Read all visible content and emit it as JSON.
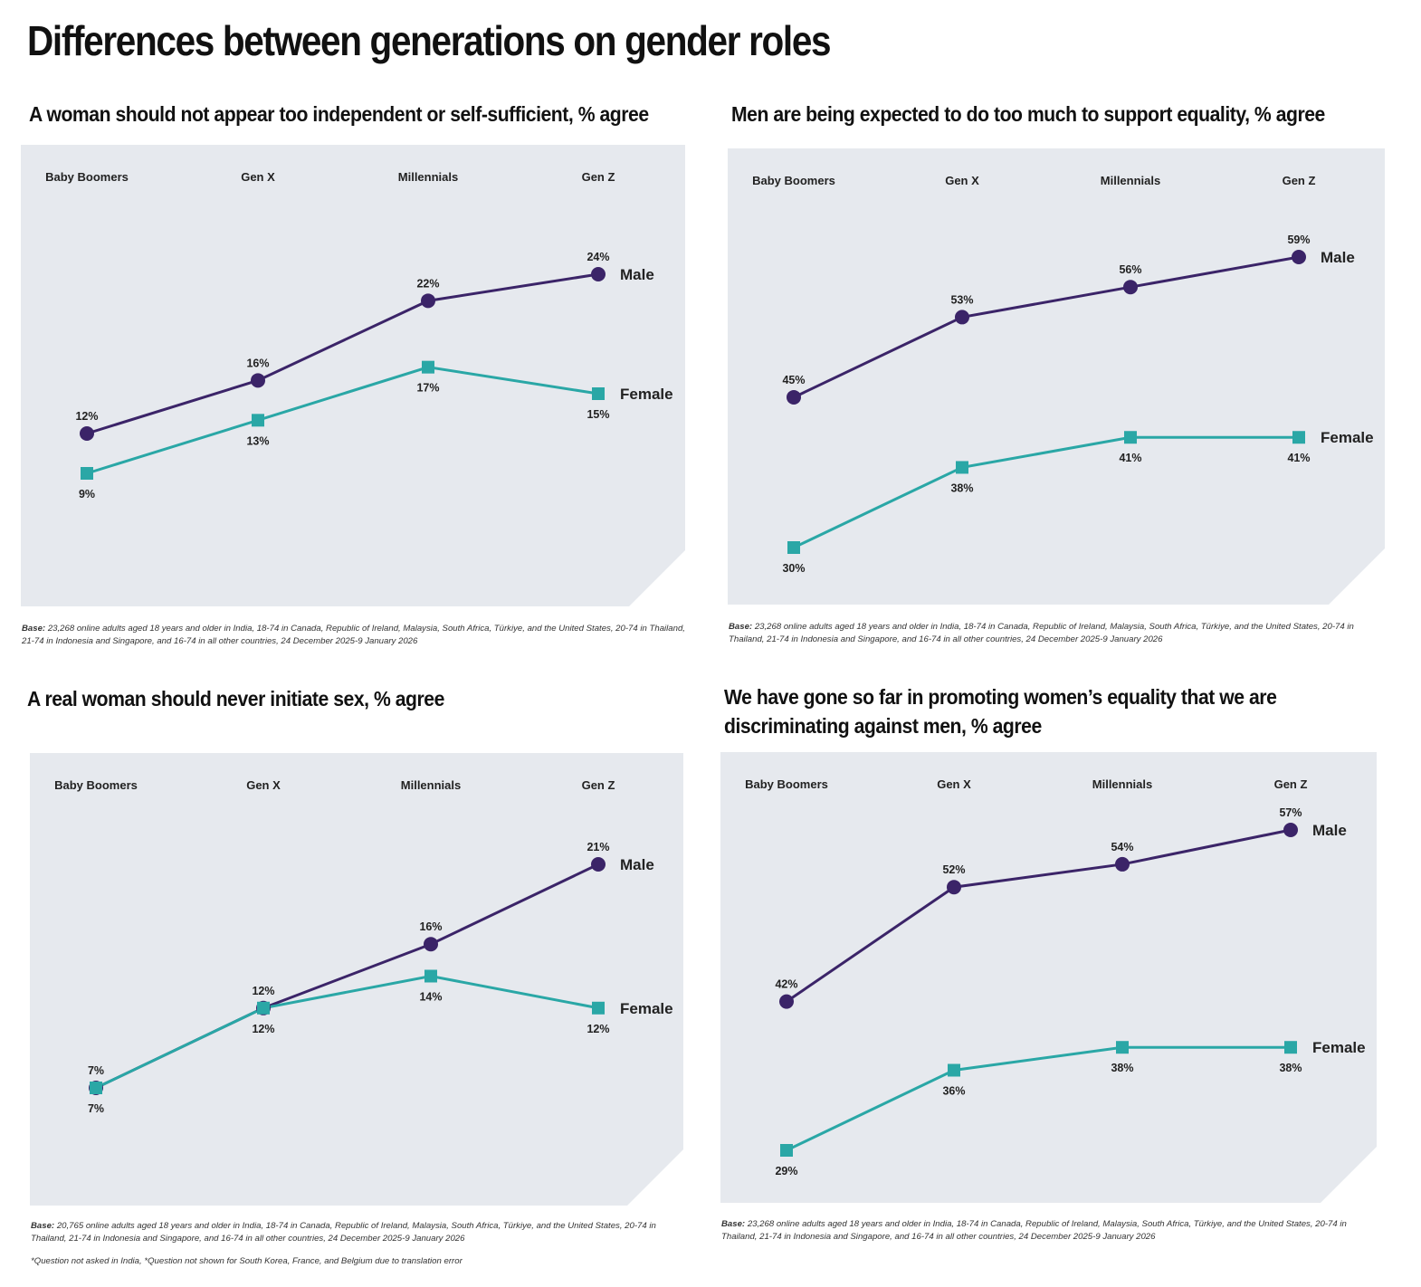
{
  "title": "Differences between generations on gender roles",
  "colors": {
    "male": "#3b2468",
    "female": "#2aa7a6",
    "panel_bg": "#e6e9ee"
  },
  "base_label": "Base:",
  "chart_data": [
    {
      "type": "line",
      "title": "A woman should not appear too independent or self-sufficient, % agree",
      "categories": [
        "Baby Boomers",
        "Gen X",
        "Millennials",
        "Gen Z"
      ],
      "series": [
        {
          "name": "Male",
          "values": [
            12,
            16,
            22,
            24
          ],
          "labels": [
            "12%",
            "16%",
            "22%",
            "24%"
          ]
        },
        {
          "name": "Female",
          "values": [
            9,
            13,
            17,
            15
          ],
          "labels": [
            "9%",
            "13%",
            "17%",
            "15%"
          ]
        }
      ],
      "base": "23,268 online adults aged 18 years and older in India, 18-74 in Canada, Republic of Ireland, Malaysia, South Africa, Türkiye, and the United States, 20-74 in Thailand, 21-74 in Indonesia and Singapore, and 16-74 in all other countries, 24 December 2025-9 January 2026"
    },
    {
      "type": "line",
      "title": "Men are being expected to do too much to support equality, % agree",
      "categories": [
        "Baby Boomers",
        "Gen X",
        "Millennials",
        "Gen Z"
      ],
      "series": [
        {
          "name": "Male",
          "values": [
            45,
            53,
            56,
            59
          ],
          "labels": [
            "45%",
            "53%",
            "56%",
            "59%"
          ]
        },
        {
          "name": "Female",
          "values": [
            30,
            38,
            41,
            41
          ],
          "labels": [
            "30%",
            "38%",
            "41%",
            "41%"
          ]
        }
      ],
      "base": "23,268 online adults aged 18 years and older in India, 18-74 in Canada, Republic of Ireland, Malaysia, South Africa, Türkiye, and the United States, 20-74 in Thailand, 21-74 in Indonesia and Singapore, and 16-74 in all other countries, 24 December 2025-9 January 2026"
    },
    {
      "type": "line",
      "title": "A real woman should never initiate sex, % agree",
      "categories": [
        "Baby Boomers",
        "Gen X",
        "Millennials",
        "Gen Z"
      ],
      "series": [
        {
          "name": "Male",
          "values": [
            7,
            12,
            16,
            21
          ],
          "labels": [
            "7%",
            "12%",
            "16%",
            "21%"
          ]
        },
        {
          "name": "Female",
          "values": [
            7,
            12,
            14,
            12
          ],
          "labels": [
            "7%",
            "12%",
            "14%",
            "12%"
          ]
        }
      ],
      "base": "20,765 online adults aged 18 years and older in India, 18-74 in Canada, Republic of Ireland, Malaysia, South Africa, Türkiye, and the United States, 20-74 in Thailand, 21-74 in Indonesia and Singapore, and 16-74 in all other countries, 24 December 2025-9 January 2026",
      "footnote": "*Question not asked in India, *Question not shown for South Korea, France, and Belgium due to translation error"
    },
    {
      "type": "line",
      "title": "We have gone so far in promoting women’s equality that we are discriminating against men, % agree",
      "categories": [
        "Baby Boomers",
        "Gen X",
        "Millennials",
        "Gen Z"
      ],
      "series": [
        {
          "name": "Male",
          "values": [
            42,
            52,
            54,
            57
          ],
          "labels": [
            "42%",
            "52%",
            "54%",
            "57%"
          ]
        },
        {
          "name": "Female",
          "values": [
            29,
            36,
            38,
            38
          ],
          "labels": [
            "29%",
            "36%",
            "38%",
            "38%"
          ]
        }
      ],
      "base": "23,268 online adults aged 18 years and older in India, 18-74 in Canada, Republic of Ireland, Malaysia, South Africa, Türkiye, and the United States, 20-74 in Thailand, 21-74 in Indonesia and Singapore, and 16-74 in all other countries, 24 December 2025-9 January 2026"
    }
  ]
}
